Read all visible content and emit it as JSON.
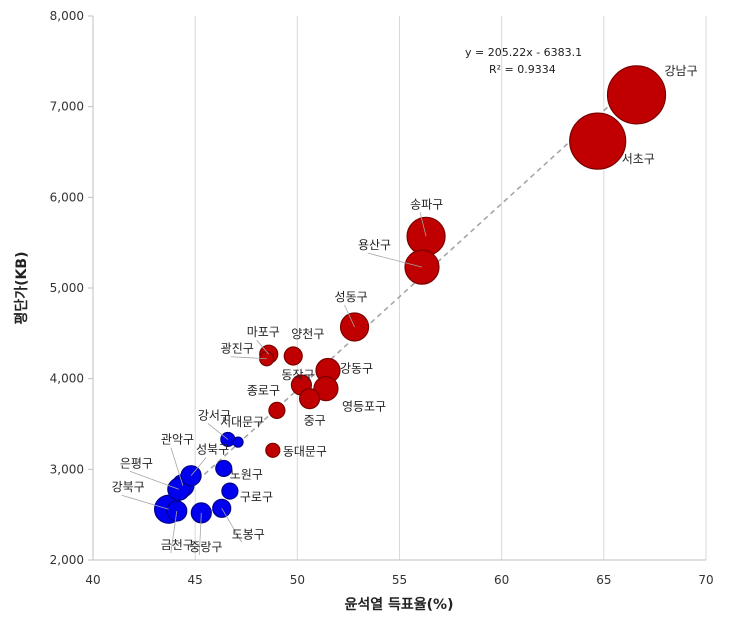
{
  "chart_data": {
    "type": "scatter",
    "xlabel": "윤석열 득표율(%)",
    "ylabel": "평단가(KB)",
    "xlim": [
      40,
      70
    ],
    "ylim": [
      2000,
      8000
    ],
    "x_ticks": [
      "40",
      "45",
      "50",
      "55",
      "60",
      "65",
      "70"
    ],
    "y_ticks": [
      "2,000",
      "3,000",
      "4,000",
      "5,000",
      "6,000",
      "7,000",
      "8,000"
    ],
    "grid": "vertical",
    "colors": {
      "high": "#c00000",
      "low": "#0000ee",
      "trend": "#a6a6a6"
    },
    "trendline": {
      "slope": 205.22,
      "intercept": -6383.1,
      "equation": "y = 205.22x - 6383.1",
      "r2_label": "R² = 0.9334",
      "x_range": [
        43.5,
        66.5
      ]
    },
    "points": [
      {
        "name": "강남구",
        "x": 66.6,
        "y": 7130,
        "r": 29,
        "color": "#c00000"
      },
      {
        "name": "서초구",
        "x": 64.7,
        "y": 6620,
        "r": 28,
        "color": "#c00000"
      },
      {
        "name": "송파구",
        "x": 56.3,
        "y": 5570,
        "r": 19,
        "color": "#c00000"
      },
      {
        "name": "용산구",
        "x": 56.1,
        "y": 5230,
        "r": 17,
        "color": "#c00000"
      },
      {
        "name": "성동구",
        "x": 52.8,
        "y": 4570,
        "r": 14,
        "color": "#c00000"
      },
      {
        "name": "마포구",
        "x": 48.6,
        "y": 4270,
        "r": 9,
        "color": "#c00000"
      },
      {
        "name": "광진구",
        "x": 48.5,
        "y": 4220,
        "r": 7,
        "color": "#c00000"
      },
      {
        "name": "양천구",
        "x": 49.8,
        "y": 4250,
        "r": 9,
        "color": "#c00000"
      },
      {
        "name": "강동구",
        "x": 51.5,
        "y": 4090,
        "r": 12,
        "color": "#c00000"
      },
      {
        "name": "동작구",
        "x": 50.2,
        "y": 3930,
        "r": 10,
        "color": "#c00000"
      },
      {
        "name": "영등포구",
        "x": 51.4,
        "y": 3890,
        "r": 12,
        "color": "#c00000"
      },
      {
        "name": "중구",
        "x": 50.6,
        "y": 3780,
        "r": 10,
        "color": "#c00000"
      },
      {
        "name": "종로구",
        "x": 49.0,
        "y": 3650,
        "r": 8,
        "color": "#c00000"
      },
      {
        "name": "동대문구",
        "x": 48.8,
        "y": 3210,
        "r": 7,
        "color": "#c00000"
      },
      {
        "name": "강서구",
        "x": 46.6,
        "y": 3330,
        "r": 7,
        "color": "#0000ee"
      },
      {
        "name": "서대문구",
        "x": 47.1,
        "y": 3300,
        "r": 5,
        "color": "#0000ee"
      },
      {
        "name": "관악구",
        "x": 44.4,
        "y": 2820,
        "r": 11,
        "color": "#0000ee"
      },
      {
        "name": "성북구",
        "x": 44.8,
        "y": 2930,
        "r": 10,
        "color": "#0000ee"
      },
      {
        "name": "은평구",
        "x": 44.2,
        "y": 2780,
        "r": 11,
        "color": "#0000ee"
      },
      {
        "name": "노원구",
        "x": 46.4,
        "y": 3010,
        "r": 8,
        "color": "#0000ee"
      },
      {
        "name": "구로구",
        "x": 46.7,
        "y": 2760,
        "r": 8,
        "color": "#0000ee"
      },
      {
        "name": "강북구",
        "x": 43.7,
        "y": 2560,
        "r": 14,
        "color": "#0000ee"
      },
      {
        "name": "금천구",
        "x": 44.1,
        "y": 2540,
        "r": 10,
        "color": "#0000ee"
      },
      {
        "name": "중랑구",
        "x": 45.3,
        "y": 2520,
        "r": 10,
        "color": "#0000ee"
      },
      {
        "name": "도봉구",
        "x": 46.3,
        "y": 2570,
        "r": 9,
        "color": "#0000ee"
      }
    ]
  }
}
